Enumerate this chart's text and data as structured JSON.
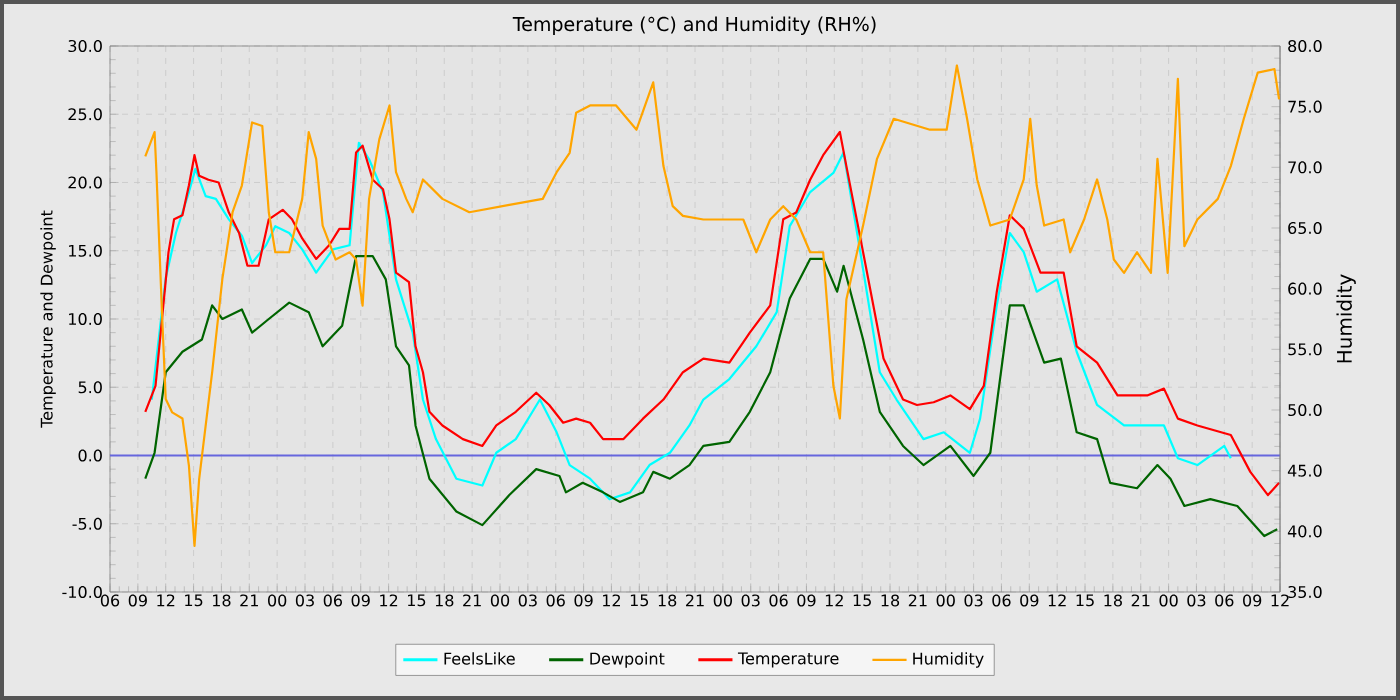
{
  "chart_data": {
    "type": "line",
    "title": "Temperature (°C) and Humidity (RH%)",
    "ylabel": "Temperature and Dewpoint",
    "y2label": "Humidity",
    "xlim": [
      6,
      132
    ],
    "xticks": [
      {
        "value": 6,
        "label": "06"
      },
      {
        "value": 9,
        "label": "09"
      },
      {
        "value": 12,
        "label": "12"
      },
      {
        "value": 15,
        "label": "15"
      },
      {
        "value": 18,
        "label": "18"
      },
      {
        "value": 21,
        "label": "21"
      },
      {
        "value": 24,
        "label": "00"
      },
      {
        "value": 27,
        "label": "03"
      },
      {
        "value": 30,
        "label": "06"
      },
      {
        "value": 33,
        "label": "09"
      },
      {
        "value": 36,
        "label": "12"
      },
      {
        "value": 39,
        "label": "15"
      },
      {
        "value": 42,
        "label": "18"
      },
      {
        "value": 45,
        "label": "21"
      },
      {
        "value": 48,
        "label": "00"
      },
      {
        "value": 51,
        "label": "03"
      },
      {
        "value": 54,
        "label": "06"
      },
      {
        "value": 57,
        "label": "09"
      },
      {
        "value": 60,
        "label": "12"
      },
      {
        "value": 63,
        "label": "15"
      },
      {
        "value": 66,
        "label": "18"
      },
      {
        "value": 69,
        "label": "21"
      },
      {
        "value": 72,
        "label": "00"
      },
      {
        "value": 75,
        "label": "03"
      },
      {
        "value": 78,
        "label": "06"
      },
      {
        "value": 81,
        "label": "09"
      },
      {
        "value": 84,
        "label": "12"
      },
      {
        "value": 87,
        "label": "15"
      },
      {
        "value": 90,
        "label": "18"
      },
      {
        "value": 93,
        "label": "21"
      },
      {
        "value": 96,
        "label": "00"
      },
      {
        "value": 99,
        "label": "03"
      },
      {
        "value": 102,
        "label": "06"
      },
      {
        "value": 105,
        "label": "09"
      },
      {
        "value": 108,
        "label": "12"
      },
      {
        "value": 111,
        "label": "15"
      },
      {
        "value": 114,
        "label": "18"
      },
      {
        "value": 117,
        "label": "21"
      },
      {
        "value": 120,
        "label": "00"
      },
      {
        "value": 123,
        "label": "03"
      },
      {
        "value": 126,
        "label": "06"
      },
      {
        "value": 129,
        "label": "09"
      },
      {
        "value": 132,
        "label": "12"
      }
    ],
    "ylim": [
      -10,
      30
    ],
    "yticks": [
      {
        "value": -10,
        "label": "-10.0"
      },
      {
        "value": -5,
        "label": "-5.0"
      },
      {
        "value": 0,
        "label": "0.0"
      },
      {
        "value": 5,
        "label": "5.0"
      },
      {
        "value": 10,
        "label": "10.0"
      },
      {
        "value": 15,
        "label": "15.0"
      },
      {
        "value": 20,
        "label": "20.0"
      },
      {
        "value": 25,
        "label": "25.0"
      },
      {
        "value": 30,
        "label": "30.0"
      }
    ],
    "y2lim": [
      35,
      80
    ],
    "y2ticks": [
      {
        "value": 35,
        "label": "35.0"
      },
      {
        "value": 40,
        "label": "40.0"
      },
      {
        "value": 45,
        "label": "45.0"
      },
      {
        "value": 50,
        "label": "50.0"
      },
      {
        "value": 55,
        "label": "55.0"
      },
      {
        "value": 60,
        "label": "60.0"
      },
      {
        "value": 65,
        "label": "65.0"
      },
      {
        "value": 70,
        "label": "70.0"
      },
      {
        "value": 75,
        "label": "75.0"
      },
      {
        "value": 80,
        "label": "80.0"
      }
    ],
    "grid": true,
    "legend": "bottom",
    "ref_lines": [
      {
        "axis": "y",
        "value": 0,
        "color": "#6666dd"
      }
    ],
    "series": [
      {
        "name": "FeelsLike",
        "color": "#00ffff",
        "x": [
          10.5,
          12.0,
          13.1,
          14.5,
          15.2,
          16.3,
          17.4,
          18.8,
          20.2,
          21.3,
          22.8,
          23.8,
          25.3,
          26.7,
          28.2,
          30.0,
          31.8,
          32.8,
          33.9,
          35.4,
          36.8,
          38.6,
          39.7,
          41.1,
          43.3,
          46.1,
          47.6,
          49.7,
          52.3,
          54.1,
          55.5,
          57.7,
          59.8,
          62.0,
          64.1,
          66.3,
          68.4,
          69.9,
          72.7,
          75.6,
          77.8,
          79.2,
          81.4,
          83.9,
          85.0,
          86.8,
          88.9,
          90.7,
          93.6,
          95.8,
          98.6,
          99.7,
          101.5,
          102.9,
          104.4,
          105.8,
          108.0,
          110.1,
          112.3,
          115.2,
          119.5,
          121.0,
          123.1,
          126.0,
          126.7
        ],
        "values": [
          4.1,
          13.0,
          16.3,
          19.3,
          21.0,
          19.0,
          18.8,
          17.3,
          16.1,
          14.1,
          15.4,
          16.8,
          16.3,
          15.1,
          13.4,
          15.1,
          15.4,
          22.9,
          21.7,
          19.3,
          12.9,
          9.0,
          4.1,
          1.2,
          -1.7,
          -2.2,
          0.2,
          1.2,
          4.1,
          1.7,
          -0.7,
          -1.7,
          -3.2,
          -2.7,
          -0.7,
          0.2,
          2.2,
          4.1,
          5.6,
          8.0,
          10.5,
          16.8,
          19.3,
          20.7,
          22.2,
          14.9,
          6.1,
          4.1,
          1.2,
          1.7,
          0.2,
          2.7,
          11.0,
          16.3,
          14.9,
          12.0,
          12.9,
          7.6,
          3.7,
          2.2,
          2.2,
          -0.2,
          -0.7,
          0.7,
          -0.2
        ]
      },
      {
        "name": "Dewpoint",
        "color": "#006400",
        "x": [
          9.8,
          10.8,
          12.0,
          13.8,
          15.9,
          17.0,
          18.1,
          20.2,
          21.3,
          23.1,
          25.3,
          27.4,
          28.9,
          31.0,
          32.5,
          34.3,
          35.7,
          36.8,
          38.2,
          38.9,
          40.4,
          43.3,
          46.1,
          49.0,
          51.9,
          54.4,
          55.1,
          56.9,
          59.1,
          60.9,
          63.4,
          64.5,
          66.3,
          68.4,
          69.9,
          72.7,
          74.9,
          77.1,
          79.2,
          81.4,
          82.8,
          84.3,
          85.0,
          87.1,
          88.9,
          91.4,
          93.6,
          96.5,
          99.0,
          100.8,
          102.9,
          104.4,
          106.6,
          108.4,
          110.1,
          112.3,
          113.7,
          116.6,
          118.8,
          120.2,
          121.7,
          124.5,
          127.4,
          130.3,
          131.7
        ],
        "values": [
          -1.7,
          0.2,
          6.1,
          7.6,
          8.5,
          11.0,
          10.0,
          10.7,
          9.0,
          10.0,
          11.2,
          10.5,
          8.0,
          9.5,
          14.6,
          14.6,
          12.9,
          8.0,
          6.6,
          2.2,
          -1.7,
          -4.1,
          -5.1,
          -2.9,
          -1.0,
          -1.5,
          -2.7,
          -2.0,
          -2.7,
          -3.4,
          -2.7,
          -1.2,
          -1.7,
          -0.7,
          0.7,
          1.0,
          3.2,
          6.1,
          11.5,
          14.4,
          14.4,
          12.0,
          13.9,
          8.5,
          3.2,
          0.7,
          -0.7,
          0.7,
          -1.5,
          0.2,
          11.0,
          11.0,
          6.8,
          7.1,
          1.7,
          1.2,
          -2.0,
          -2.4,
          -0.7,
          -1.7,
          -3.7,
          -3.2,
          -3.7,
          -5.9,
          -5.4
        ]
      },
      {
        "name": "Temperature",
        "color": "#ff0000",
        "x": [
          9.8,
          10.9,
          11.6,
          12.3,
          12.9,
          13.8,
          14.5,
          15.1,
          15.6,
          16.6,
          17.7,
          18.8,
          19.9,
          20.8,
          22.0,
          23.1,
          24.6,
          25.6,
          26.7,
          28.2,
          29.6,
          30.7,
          31.8,
          32.5,
          33.2,
          34.3,
          35.4,
          36.1,
          36.8,
          38.2,
          38.9,
          39.7,
          40.4,
          41.8,
          44.0,
          46.1,
          47.6,
          49.7,
          51.9,
          53.3,
          54.8,
          56.2,
          57.7,
          59.1,
          61.3,
          63.4,
          65.6,
          67.7,
          69.9,
          72.7,
          74.9,
          77.1,
          78.5,
          79.9,
          81.4,
          82.8,
          84.6,
          85.3,
          87.1,
          89.3,
          91.4,
          92.9,
          94.7,
          96.5,
          98.6,
          100.1,
          101.5,
          102.9,
          104.4,
          106.2,
          108.7,
          110.1,
          112.3,
          114.5,
          117.7,
          119.5,
          121.0,
          123.1,
          126.7,
          128.8,
          130.7,
          131.9
        ],
        "values": [
          3.2,
          5.1,
          10.0,
          14.9,
          17.3,
          17.6,
          19.8,
          22.0,
          20.5,
          20.2,
          20.0,
          17.8,
          16.3,
          13.9,
          13.9,
          17.3,
          18.0,
          17.3,
          15.9,
          14.4,
          15.4,
          16.6,
          16.6,
          22.2,
          22.7,
          20.2,
          19.5,
          17.3,
          13.4,
          12.7,
          8.0,
          6.1,
          3.2,
          2.2,
          1.2,
          0.7,
          2.2,
          3.2,
          4.6,
          3.7,
          2.4,
          2.7,
          2.4,
          1.2,
          1.2,
          2.7,
          4.1,
          6.1,
          7.1,
          6.8,
          9.0,
          11.0,
          17.3,
          17.8,
          20.2,
          22.0,
          23.7,
          21.2,
          14.9,
          7.1,
          4.1,
          3.7,
          3.9,
          4.4,
          3.4,
          5.1,
          12.0,
          17.6,
          16.6,
          13.4,
          13.4,
          8.0,
          6.8,
          4.4,
          4.4,
          4.9,
          2.7,
          2.2,
          1.5,
          -1.2,
          -2.9,
          -2.0
        ]
      },
      {
        "name": "Humidity",
        "color": "#ffa500",
        "axis": "y2",
        "x": [
          9.8,
          10.8,
          11.0,
          11.6,
          12.0,
          12.7,
          13.8,
          14.5,
          15.1,
          15.6,
          16.3,
          17.0,
          18.1,
          19.2,
          20.2,
          21.3,
          22.4,
          23.1,
          23.8,
          25.3,
          26.7,
          27.4,
          28.2,
          28.9,
          30.3,
          31.8,
          32.5,
          33.2,
          33.9,
          35.0,
          36.1,
          36.8,
          37.9,
          38.6,
          39.7,
          41.8,
          44.7,
          49.0,
          52.6,
          54.1,
          55.5,
          56.2,
          57.7,
          60.5,
          62.7,
          64.5,
          65.6,
          66.6,
          67.7,
          69.9,
          74.2,
          75.6,
          77.1,
          78.5,
          79.9,
          81.4,
          82.8,
          83.9,
          84.6,
          85.3,
          87.1,
          88.6,
          90.4,
          94.3,
          96.1,
          97.2,
          98.3,
          99.4,
          100.8,
          102.9,
          104.4,
          105.1,
          105.8,
          106.6,
          108.7,
          109.4,
          110.9,
          112.3,
          113.4,
          114.1,
          115.2,
          116.6,
          118.1,
          118.8,
          119.9,
          121.0,
          121.7,
          123.1,
          125.3,
          126.7,
          128.1,
          129.6,
          131.4,
          131.9
        ],
        "values": [
          70.9,
          72.9,
          69.6,
          58.0,
          50.9,
          49.8,
          49.3,
          45.4,
          38.8,
          44.3,
          48.7,
          53.1,
          60.8,
          66.3,
          68.5,
          73.7,
          73.4,
          66.3,
          63.0,
          63.0,
          67.4,
          72.9,
          70.7,
          65.2,
          62.4,
          63.0,
          62.4,
          58.6,
          67.4,
          72.3,
          75.1,
          69.6,
          67.4,
          66.3,
          69.0,
          67.4,
          66.3,
          66.9,
          67.4,
          69.6,
          71.2,
          74.5,
          75.1,
          75.1,
          73.1,
          77.0,
          70.1,
          66.8,
          66.0,
          65.7,
          65.7,
          63.0,
          65.7,
          66.8,
          65.7,
          63.0,
          63.0,
          52.0,
          49.3,
          59.1,
          65.2,
          70.7,
          74.0,
          73.1,
          73.1,
          78.4,
          74.0,
          69.0,
          65.2,
          65.7,
          69.0,
          74.0,
          68.5,
          65.2,
          65.7,
          63.0,
          65.7,
          69.0,
          65.7,
          62.4,
          61.3,
          63.0,
          61.3,
          70.7,
          61.3,
          77.3,
          63.5,
          65.7,
          67.4,
          70.1,
          74.0,
          77.8,
          78.1,
          75.6
        ]
      }
    ]
  }
}
